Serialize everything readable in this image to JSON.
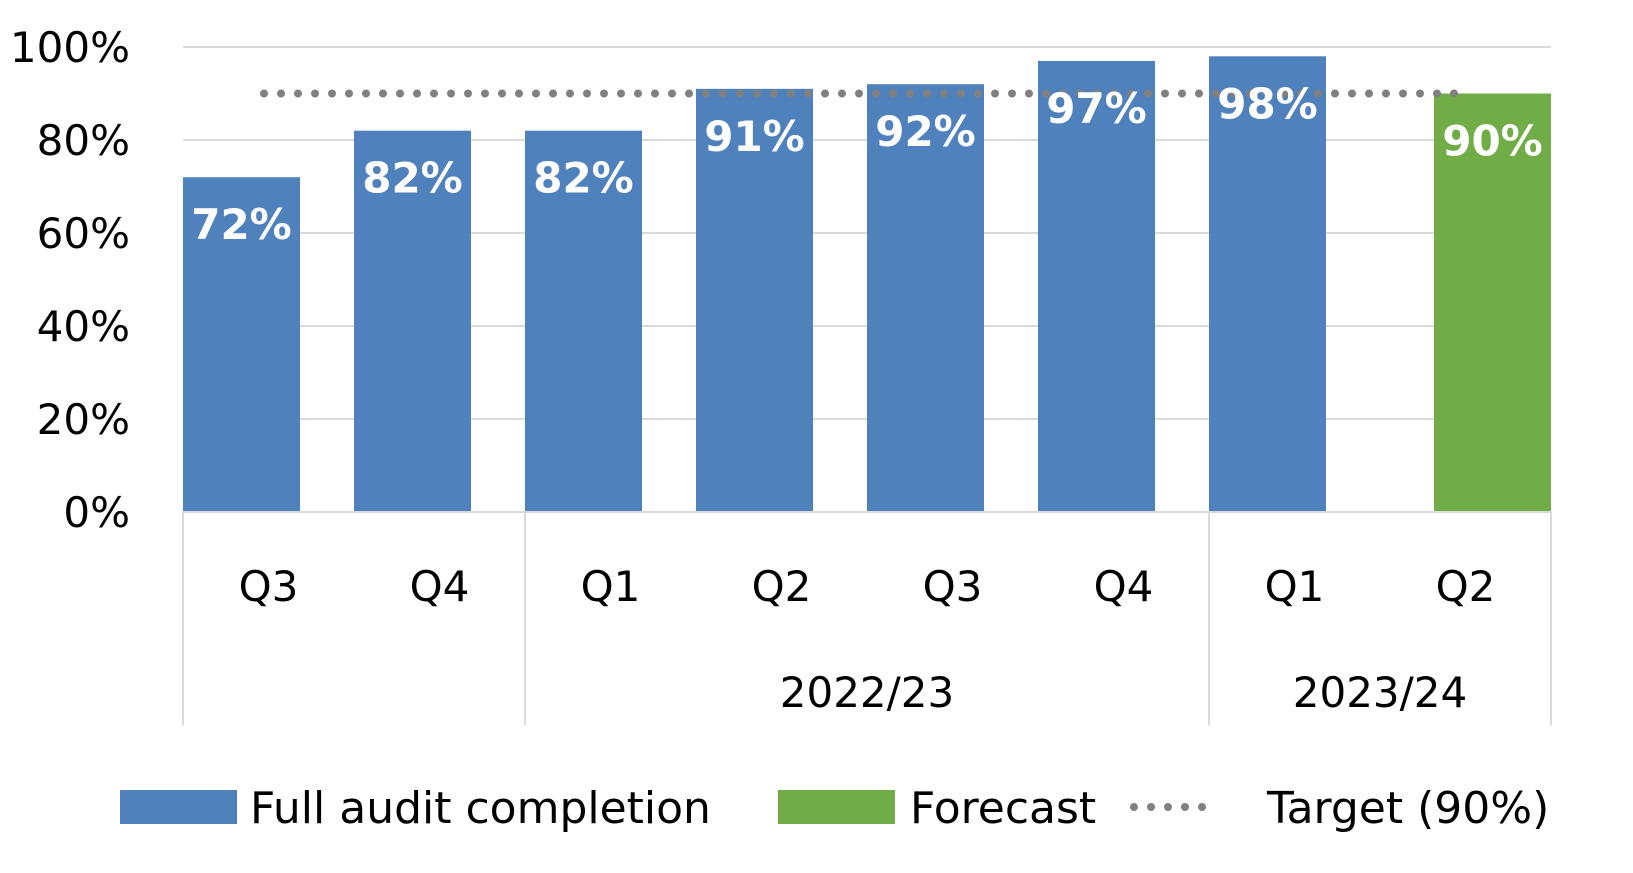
{
  "chart_data": {
    "type": "bar",
    "categories": [
      "Q3",
      "Q4",
      "Q1",
      "Q2",
      "Q3",
      "Q4",
      "Q1",
      "Q2"
    ],
    "groups": [
      {
        "label": "",
        "start": 0,
        "end": 1
      },
      {
        "label": "2022/23",
        "start": 2,
        "end": 5
      },
      {
        "label": "2023/24",
        "start": 6,
        "end": 7
      }
    ],
    "series": [
      {
        "name": "Full audit completion",
        "values": [
          72,
          82,
          82,
          91,
          92,
          97,
          98,
          null
        ],
        "color": "#4F81BD"
      },
      {
        "name": "Forecast",
        "values": [
          null,
          null,
          null,
          null,
          null,
          null,
          null,
          90
        ],
        "color": "#70AD47"
      }
    ],
    "data_labels": [
      "72%",
      "82%",
      "82%",
      "91%",
      "92%",
      "97%",
      "98%",
      "90%"
    ],
    "target": {
      "name": "Target (90%)",
      "value": 90,
      "style": "dotted",
      "color": "#808080"
    },
    "y_ticks": [
      "0%",
      "20%",
      "40%",
      "60%",
      "80%",
      "100%"
    ],
    "ylim": [
      0,
      100
    ],
    "grid": true,
    "legend_position": "bottom"
  }
}
